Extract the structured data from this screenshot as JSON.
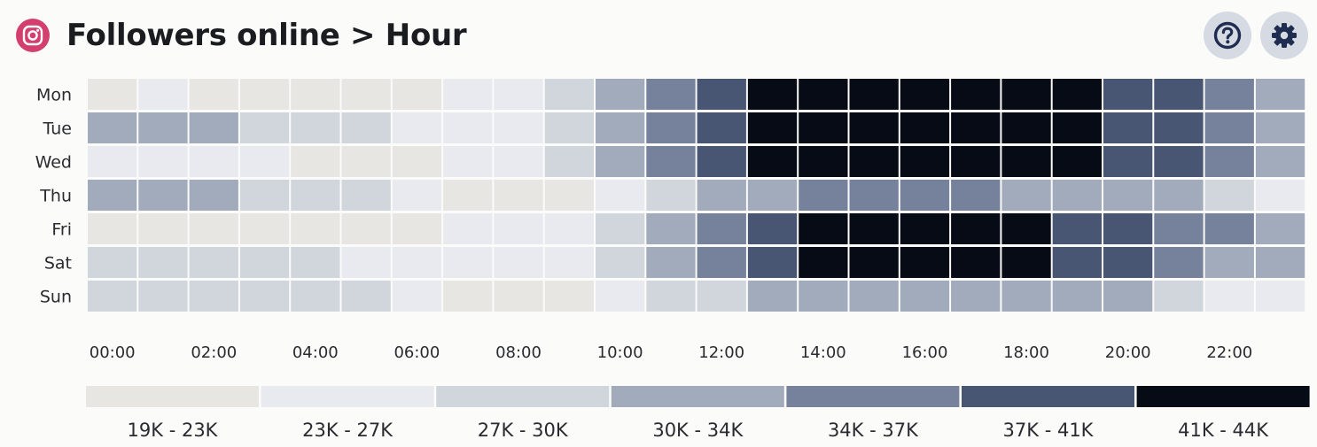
{
  "header": {
    "title": "Followers online > Hour",
    "logo_icon": "instagram-icon",
    "help_icon": "question-circle-icon",
    "settings_icon": "gear-icon"
  },
  "colors": {
    "scale": [
      "#e8e6e2",
      "#e9eaef",
      "#d1d6dd",
      "#a2abbb",
      "#76819b",
      "#485573",
      "#070b15"
    ],
    "logo": "#d3406f",
    "button_bg": "#d6dae2",
    "icon": "#1f2d50"
  },
  "chart_data": {
    "type": "heatmap",
    "title": "Followers online > Hour",
    "rows": [
      "Mon",
      "Tue",
      "Wed",
      "Thu",
      "Fri",
      "Sat",
      "Sun"
    ],
    "hours": [
      "00",
      "01",
      "02",
      "03",
      "04",
      "05",
      "06",
      "07",
      "08",
      "09",
      "10",
      "11",
      "12",
      "13",
      "14",
      "15",
      "16",
      "17",
      "18",
      "19",
      "20",
      "21",
      "22",
      "23"
    ],
    "x_tick_labels": [
      "00:00",
      "02:00",
      "04:00",
      "06:00",
      "08:00",
      "10:00",
      "12:00",
      "14:00",
      "16:00",
      "18:00",
      "20:00",
      "22:00"
    ],
    "x_tick_step": 2,
    "legend": [
      "19K - 23K",
      "23K - 27K",
      "27K - 30K",
      "30K - 34K",
      "34K - 37K",
      "37K - 41K",
      "41K - 44K"
    ],
    "bins": [
      [
        0,
        1,
        0,
        0,
        0,
        0,
        0,
        1,
        1,
        2,
        3,
        4,
        5,
        6,
        6,
        6,
        6,
        6,
        6,
        6,
        5,
        5,
        4,
        3
      ],
      [
        3,
        3,
        3,
        2,
        2,
        2,
        1,
        1,
        1,
        2,
        3,
        4,
        5,
        6,
        6,
        6,
        6,
        6,
        6,
        6,
        5,
        5,
        4,
        3
      ],
      [
        1,
        1,
        1,
        1,
        0,
        0,
        0,
        1,
        1,
        2,
        3,
        4,
        5,
        6,
        6,
        6,
        6,
        6,
        6,
        6,
        5,
        5,
        4,
        3
      ],
      [
        3,
        3,
        3,
        2,
        2,
        2,
        1,
        0,
        0,
        0,
        1,
        2,
        3,
        3,
        4,
        4,
        4,
        4,
        3,
        3,
        3,
        3,
        2,
        1
      ],
      [
        0,
        0,
        0,
        0,
        0,
        0,
        0,
        1,
        1,
        1,
        2,
        3,
        4,
        5,
        6,
        6,
        6,
        6,
        6,
        5,
        5,
        4,
        4,
        3
      ],
      [
        2,
        2,
        2,
        2,
        2,
        1,
        1,
        1,
        1,
        1,
        2,
        3,
        4,
        5,
        6,
        6,
        6,
        6,
        6,
        5,
        5,
        4,
        3,
        3
      ],
      [
        2,
        2,
        2,
        2,
        2,
        2,
        1,
        0,
        0,
        0,
        1,
        2,
        2,
        3,
        3,
        3,
        3,
        3,
        3,
        3,
        3,
        2,
        1,
        1
      ]
    ]
  }
}
